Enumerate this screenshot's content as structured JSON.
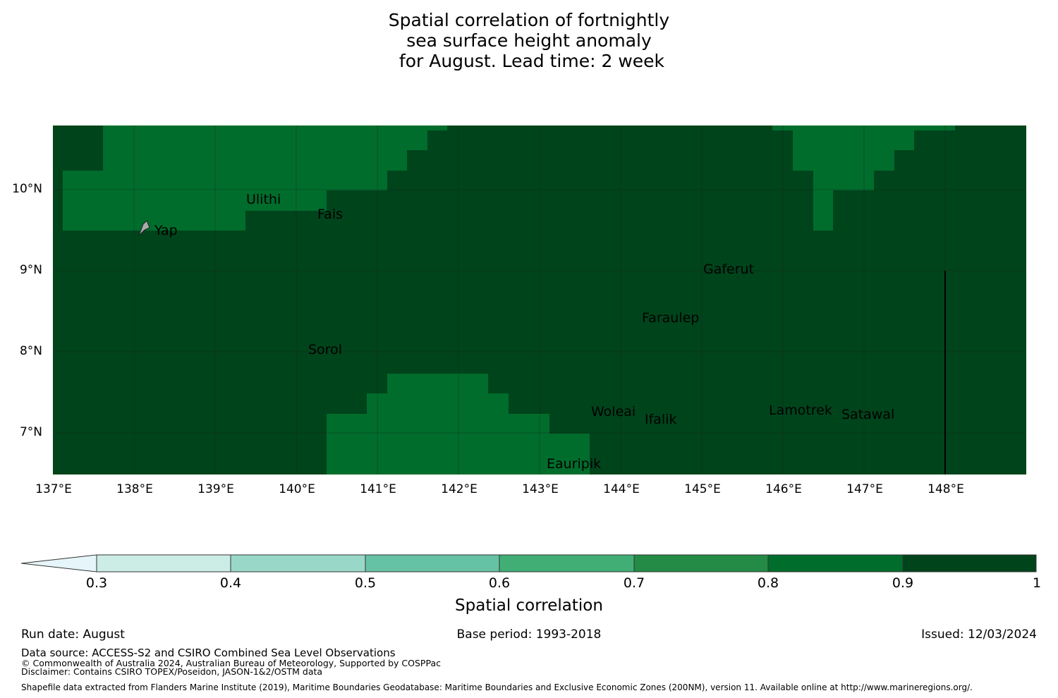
{
  "title": {
    "line1": "Spatial correlation of fortnightly",
    "line2": "sea surface height anomaly",
    "line3": " for August. Lead time: 2 week"
  },
  "map": {
    "lat_labels": [
      "10°N",
      "9°N",
      "8°N",
      "7°N"
    ],
    "lon_labels": [
      "137°E",
      "138°E",
      "139°E",
      "140°E",
      "141°E",
      "142°E",
      "143°E",
      "144°E",
      "145°E",
      "146°E",
      "147°E",
      "148°E"
    ],
    "places": [
      "Ulithi",
      "Fais",
      "Yap",
      "Gaferut",
      "Faraulep",
      "Sorol",
      "Woleai",
      "Ifalik",
      "Lamotrek",
      "Satawal",
      "Eauripik"
    ],
    "colors": {
      "band_0_9_1": "#00441b",
      "band_0_8_0_9": "#006d2c",
      "grid": "#1c1c1c"
    }
  },
  "colorbar": {
    "ticks": [
      "0.3",
      "0.4",
      "0.5",
      "0.6",
      "0.7",
      "0.8",
      "0.9",
      "1"
    ],
    "colors": [
      "#e5f5f9",
      "#ccece6",
      "#99d8c9",
      "#66c2a4",
      "#41ae76",
      "#238b45",
      "#006d2c",
      "#00441b"
    ],
    "label": "Spatial correlation"
  },
  "footer": {
    "run_date": "Run date: August",
    "base_period": "Base period: 1993-2018",
    "issued": "Issued: 12/03/2024",
    "data_source": "Data source: ACCESS-S2 and CSIRO Combined Sea Level Observations",
    "copyright": "© Commonwealth of Australia 2024, Australian Bureau of Meteorology, Supported by COSPPac",
    "disclaimer": "Disclaimer: Contains CSIRO TOPEX/Poseidon, JASON-1&2/OSTM data",
    "shapefile": "Shapefile data extracted from Flanders Marine Institute (2019), Maritime Boundaries Geodatabase: Maritime Boundaries and Exclusive Economic Zones (200NM), version 11. Available online at http://www.marineregions.org/."
  }
}
